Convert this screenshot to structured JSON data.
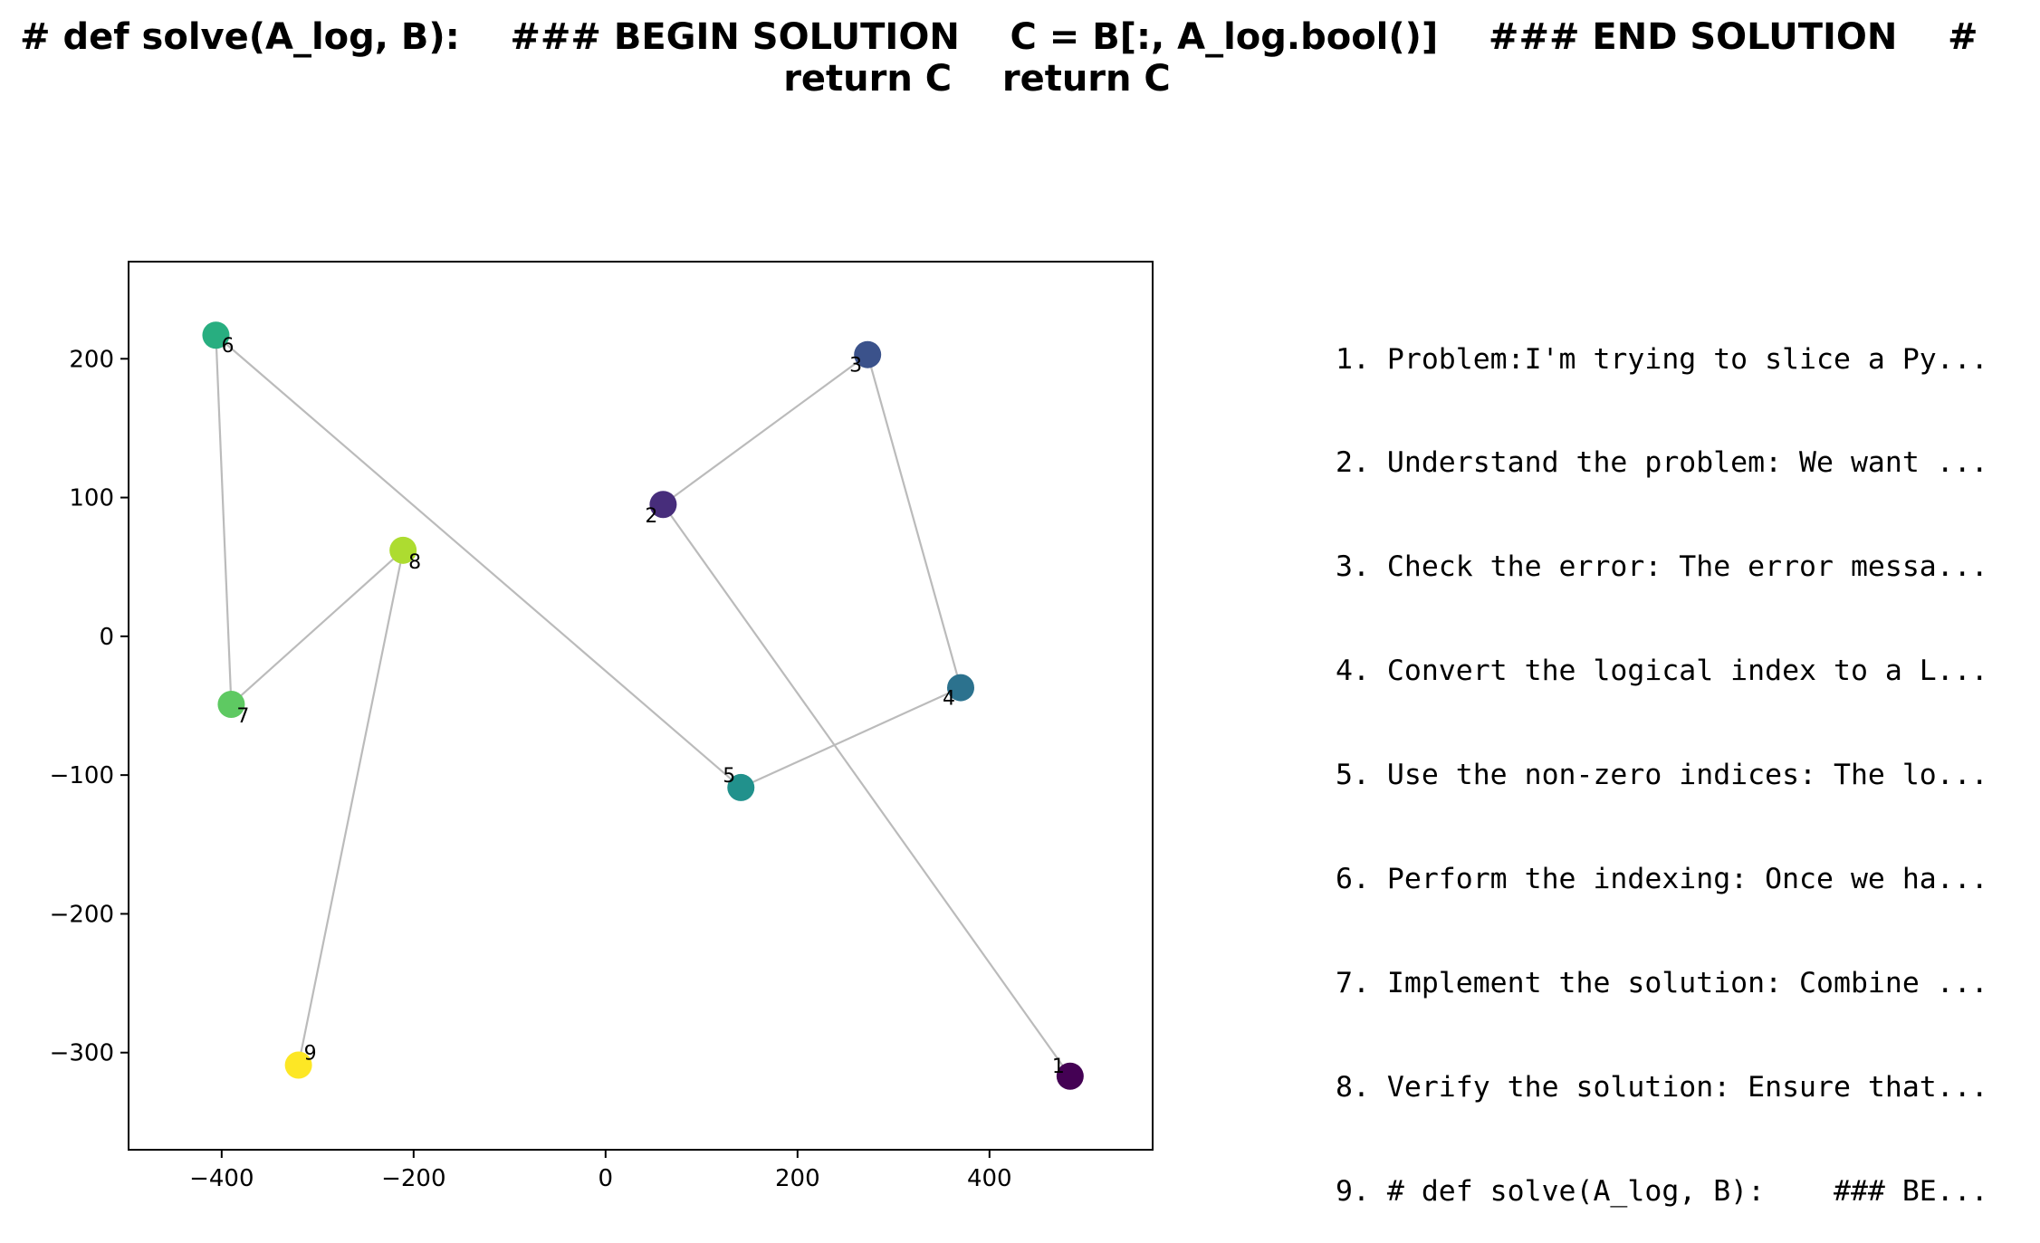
{
  "title": {
    "line1": "# def solve(A_log, B):    ### BEGIN SOLUTION    C = B[:, A_log.bool()]    ### END SOLUTION    #",
    "line2": "return C    return C"
  },
  "steps": [
    "1. Problem:I'm trying to slice a Py...",
    "2. Understand the problem: We want ...",
    "3. Check the error: The error messa...",
    "4. Convert the logical index to a L...",
    "5. Use the non-zero indices: The lo...",
    "6. Perform the indexing: Once we ha...",
    "7. Implement the solution: Combine ...",
    "8. Verify the solution: Ensure that...",
    "9. # def solve(A_log, B):    ### BE..."
  ],
  "chart_data": {
    "type": "scatter",
    "title": "# def solve(A_log, B):    ### BEGIN SOLUTION    C = B[:, A_log.bool()]    ### END SOLUTION    # return C    return C",
    "xlabel": "",
    "ylabel": "",
    "xlim": [
      -497,
      570
    ],
    "ylim": [
      -370,
      270
    ],
    "x_ticks": [
      -400,
      -200,
      0,
      200,
      400
    ],
    "y_ticks": [
      -300,
      -200,
      -100,
      0,
      100,
      200
    ],
    "x_tick_labels": [
      "−400",
      "−200",
      "0",
      "200",
      "400"
    ],
    "y_tick_labels": [
      "−300",
      "−200",
      "−100",
      "0",
      "100",
      "200"
    ],
    "grid": false,
    "connected_in_order": true,
    "line_color": "#bbbbbb",
    "colormap": "viridis",
    "points": [
      {
        "label": "1",
        "x": 484,
        "y": -317,
        "color": "#440154"
      },
      {
        "label": "2",
        "x": 60,
        "y": 95,
        "color": "#472d7b"
      },
      {
        "label": "3",
        "x": 273,
        "y": 203,
        "color": "#3b528b"
      },
      {
        "label": "4",
        "x": 370,
        "y": -37,
        "color": "#2c728e"
      },
      {
        "label": "5",
        "x": 141,
        "y": -109,
        "color": "#21918c"
      },
      {
        "label": "6",
        "x": -406,
        "y": 217,
        "color": "#28ae80"
      },
      {
        "label": "7",
        "x": -390,
        "y": -49,
        "color": "#5ec962"
      },
      {
        "label": "8",
        "x": -211,
        "y": 62,
        "color": "#addc30"
      },
      {
        "label": "9",
        "x": -320,
        "y": -309,
        "color": "#fde725"
      }
    ]
  }
}
